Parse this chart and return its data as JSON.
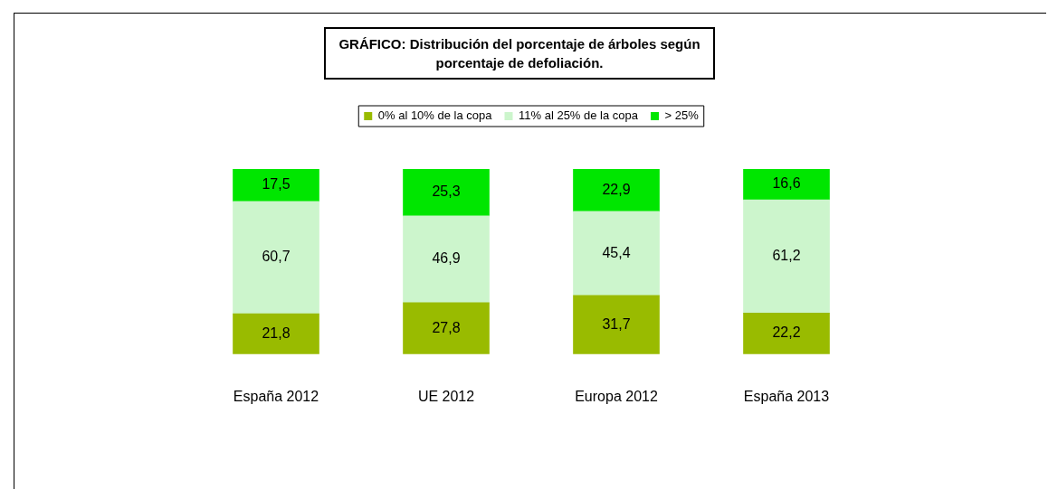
{
  "chart_data": {
    "type": "bar",
    "stacked": true,
    "title": "GRÁFICO: Distribución del porcentaje de árboles según porcentaje de defoliación.",
    "categories": [
      "España 2012",
      "UE 2012",
      "Europa 2012",
      "España 2013"
    ],
    "series": [
      {
        "name": "0% al 10% de la copa",
        "color": "#99bb00",
        "values": [
          21.8,
          27.8,
          31.7,
          22.2
        ],
        "value_labels": [
          "21,8",
          "27,8",
          "31,7",
          "22,2"
        ]
      },
      {
        "name": "11% al 25% de la copa",
        "color": "#ccf5cc",
        "values": [
          60.7,
          46.9,
          45.4,
          61.2
        ],
        "value_labels": [
          "60,7",
          "46,9",
          "45,4",
          "61,2"
        ]
      },
      {
        "name": "> 25%",
        "color": "#00e600",
        "values": [
          17.5,
          25.3,
          22.9,
          16.6
        ],
        "value_labels": [
          "17,5",
          "25,3",
          "22,9",
          "16,6"
        ]
      }
    ],
    "tick_labels": "x",
    "legend": "top",
    "grid": false
  }
}
